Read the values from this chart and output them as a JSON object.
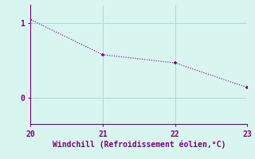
{
  "x": [
    20,
    21,
    22,
    23
  ],
  "y": [
    1.05,
    0.58,
    0.47,
    0.14
  ],
  "line_color": "#800080",
  "marker_color": "#800080",
  "background_color": "#d8f5f0",
  "grid_color": "#b0d8d8",
  "axis_color": "#800080",
  "xlabel": "Windchill (Refroidissement éolien,°C)",
  "xlabel_color": "#800080",
  "tick_color": "#800080",
  "xlim": [
    20,
    23
  ],
  "ylim": [
    -0.35,
    1.25
  ],
  "yticks": [
    0,
    1
  ],
  "xticks": [
    20,
    21,
    22,
    23
  ],
  "xlabel_fontsize": 7.0,
  "tick_fontsize": 7.0,
  "line_width": 1.0,
  "marker_size": 3.5
}
